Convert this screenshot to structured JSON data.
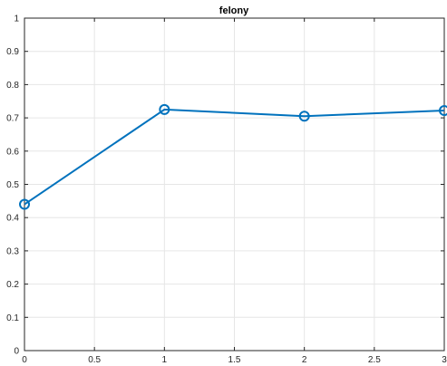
{
  "chart_data": {
    "type": "line",
    "title": "felony",
    "xlabel": "",
    "ylabel": "",
    "xlim": [
      0,
      3
    ],
    "ylim": [
      0,
      1
    ],
    "xticks": [
      "0",
      "0.5",
      "1",
      "1.5",
      "2",
      "2.5",
      "3"
    ],
    "yticks": [
      "0",
      "0.1",
      "0.2",
      "0.3",
      "0.4",
      "0.5",
      "0.6",
      "0.7",
      "0.8",
      "0.9",
      "1"
    ],
    "grid": true,
    "series": [
      {
        "x": [
          0,
          1,
          2,
          3
        ],
        "y": [
          0.44,
          0.725,
          0.705,
          0.722
        ],
        "color": "#0072BD",
        "marker": "circle"
      }
    ]
  }
}
